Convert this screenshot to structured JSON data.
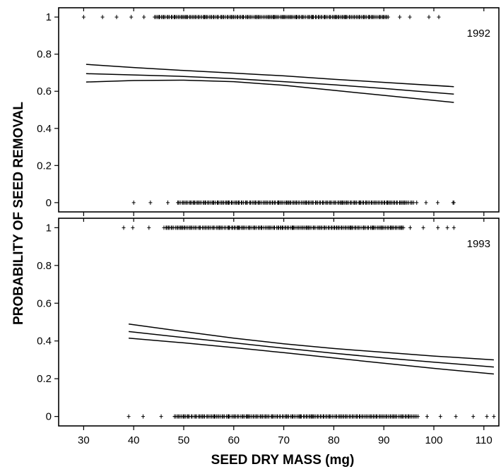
{
  "chart_data": [
    {
      "type": "line",
      "panel_label": "1992",
      "xlabel": "SEED DRY MASS (mg)",
      "ylabel": "PROBABILITY OF SEED REMOVAL",
      "xlim": [
        25,
        113
      ],
      "ylim": [
        -0.05,
        1.05
      ],
      "y_ticks": [
        0,
        0.2,
        0.4,
        0.6,
        0.8,
        1
      ],
      "y_tick_labels": [
        "0",
        "0.2",
        "0.4",
        "0.6",
        "0.8",
        "1"
      ],
      "series": [
        {
          "role": "upper",
          "x": [
            30.5,
            40,
            50,
            60,
            70,
            80,
            90,
            104
          ],
          "y": [
            0.745,
            0.728,
            0.712,
            0.698,
            0.683,
            0.665,
            0.648,
            0.625
          ]
        },
        {
          "role": "fit",
          "x": [
            30.5,
            40,
            50,
            60,
            70,
            80,
            90,
            104
          ],
          "y": [
            0.695,
            0.688,
            0.68,
            0.668,
            0.652,
            0.635,
            0.615,
            0.585
          ]
        },
        {
          "role": "lower",
          "x": [
            30.5,
            40,
            50,
            60,
            70,
            80,
            90,
            104
          ],
          "y": [
            0.65,
            0.658,
            0.66,
            0.652,
            0.632,
            0.605,
            0.578,
            0.54
          ]
        }
      ],
      "observations": [
        {
          "y": 1,
          "x_min": 30,
          "x_max": 101,
          "dense_from": 44,
          "dense_to": 91
        },
        {
          "y": 0,
          "x_min": 40,
          "x_max": 104,
          "dense_from": 49,
          "dense_to": 96
        }
      ]
    },
    {
      "type": "line",
      "panel_label": "1993",
      "xlabel": "SEED DRY MASS (mg)",
      "ylabel": "PROBABILITY OF SEED REMOVAL",
      "xlim": [
        25,
        113
      ],
      "ylim": [
        -0.05,
        1.05
      ],
      "x_ticks": [
        30,
        40,
        50,
        60,
        70,
        80,
        90,
        100,
        110
      ],
      "x_tick_labels": [
        "30",
        "40",
        "50",
        "60",
        "70",
        "80",
        "90",
        "100",
        "110"
      ],
      "y_ticks": [
        0,
        0.2,
        0.4,
        0.6,
        0.8,
        1
      ],
      "y_tick_labels": [
        "0",
        "0.2",
        "0.4",
        "0.6",
        "0.8",
        "1"
      ],
      "series": [
        {
          "role": "upper",
          "x": [
            39,
            50,
            60,
            70,
            80,
            90,
            100,
            112
          ],
          "y": [
            0.49,
            0.45,
            0.415,
            0.385,
            0.36,
            0.34,
            0.32,
            0.3
          ]
        },
        {
          "role": "fit",
          "x": [
            39,
            50,
            60,
            70,
            80,
            90,
            100,
            112
          ],
          "y": [
            0.45,
            0.418,
            0.39,
            0.362,
            0.335,
            0.31,
            0.288,
            0.262
          ]
        },
        {
          "role": "lower",
          "x": [
            39,
            50,
            60,
            70,
            80,
            90,
            100,
            112
          ],
          "y": [
            0.415,
            0.39,
            0.365,
            0.338,
            0.31,
            0.282,
            0.255,
            0.225
          ]
        }
      ],
      "observations": [
        {
          "y": 1,
          "x_min": 38,
          "x_max": 104,
          "dense_from": 46,
          "dense_to": 94
        },
        {
          "y": 0,
          "x_min": 39,
          "x_max": 112,
          "dense_from": 48,
          "dense_to": 97
        }
      ]
    }
  ]
}
